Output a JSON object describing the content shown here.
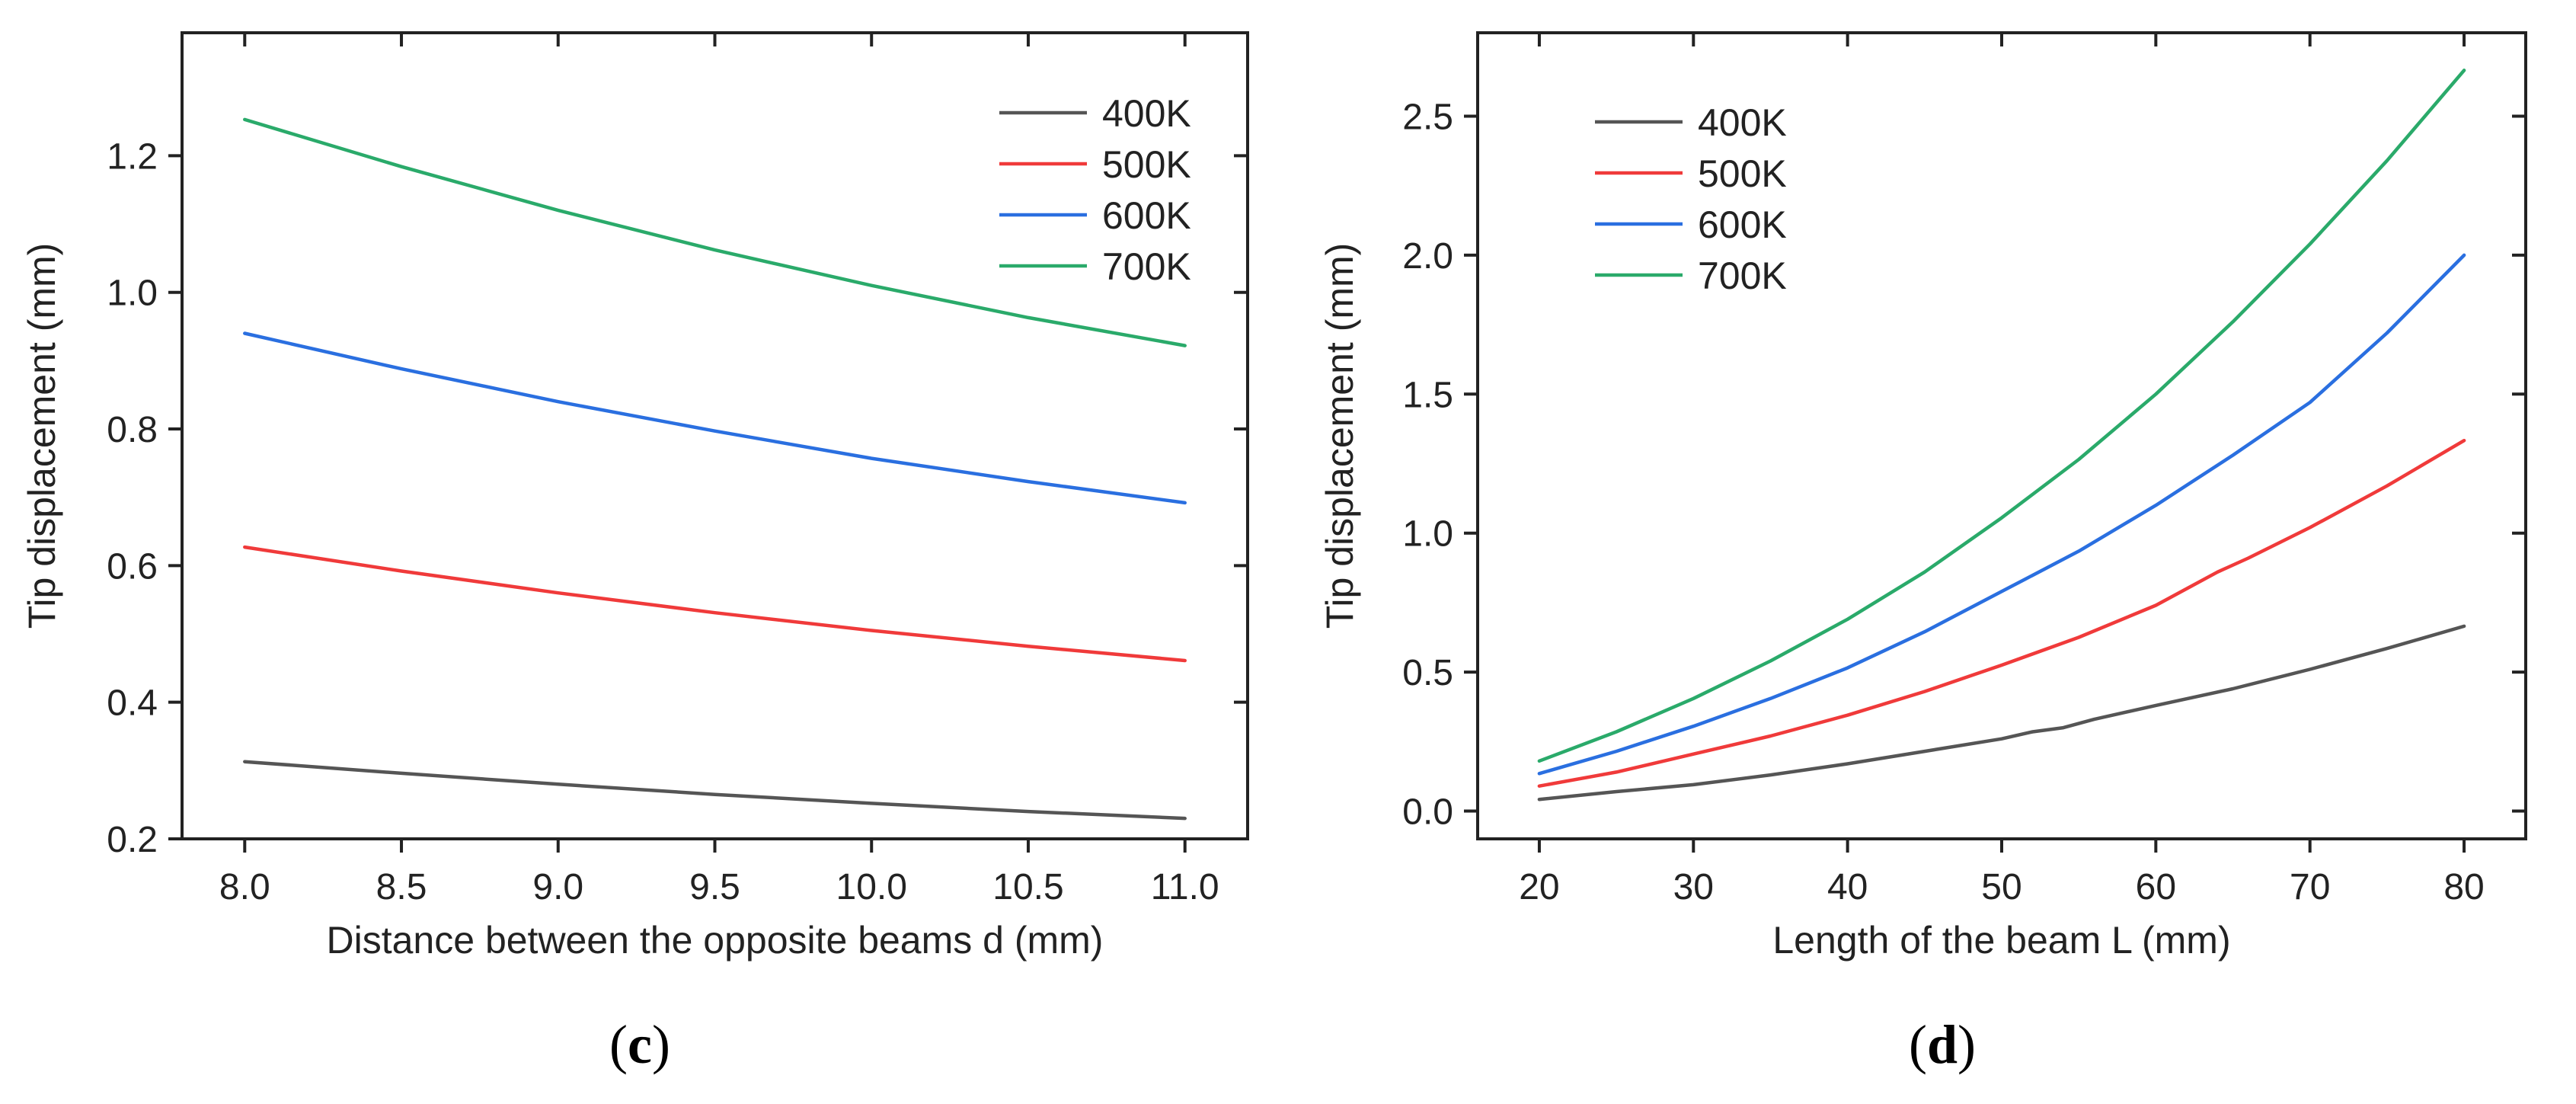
{
  "chart_data": [
    {
      "type": "line",
      "panel_label": "c",
      "xlabel": "Distance between the opposite beams d (mm)",
      "ylabel": "Tip displacement (mm)",
      "xlim": [
        7.8,
        11.2
      ],
      "ylim": [
        0.2,
        1.38
      ],
      "xticks": [
        8.0,
        8.5,
        9.0,
        9.5,
        10.0,
        10.5,
        11.0
      ],
      "xtick_labels": [
        "8.0",
        "8.5",
        "9.0",
        "9.5",
        "10.0",
        "10.5",
        "11.0"
      ],
      "yticks": [
        0.2,
        0.4,
        0.6,
        0.8,
        1.0,
        1.2
      ],
      "ytick_labels": [
        "0.2",
        "0.4",
        "0.6",
        "0.8",
        "1.0",
        "1.2"
      ],
      "legend_position": "top-right",
      "series": [
        {
          "name": "400K",
          "color": "#555555",
          "x": [
            8.0,
            8.5,
            9.0,
            9.5,
            10.0,
            10.5,
            11.0
          ],
          "values": [
            0.313,
            0.296,
            0.28,
            0.265,
            0.252,
            0.24,
            0.23
          ]
        },
        {
          "name": "500K",
          "color": "#f03a3a",
          "x": [
            8.0,
            8.5,
            9.0,
            9.5,
            10.0,
            10.5,
            11.0
          ],
          "values": [
            0.627,
            0.592,
            0.56,
            0.531,
            0.505,
            0.482,
            0.461
          ]
        },
        {
          "name": "600K",
          "color": "#2a6fe0",
          "x": [
            8.0,
            8.5,
            9.0,
            9.5,
            10.0,
            10.5,
            11.0
          ],
          "values": [
            0.94,
            0.888,
            0.84,
            0.797,
            0.757,
            0.723,
            0.692
          ]
        },
        {
          "name": "700K",
          "color": "#2aaa6a",
          "x": [
            8.0,
            8.5,
            9.0,
            9.5,
            10.0,
            10.5,
            11.0
          ],
          "values": [
            1.253,
            1.184,
            1.12,
            1.062,
            1.01,
            0.963,
            0.922
          ]
        }
      ]
    },
    {
      "type": "line",
      "panel_label": "d",
      "xlabel": "Length of the beam L (mm)",
      "ylabel": "Tip displacement (mm)",
      "xlim": [
        16,
        84
      ],
      "ylim": [
        -0.1,
        2.8
      ],
      "xticks": [
        20,
        30,
        40,
        50,
        60,
        70,
        80
      ],
      "xtick_labels": [
        "20",
        "30",
        "40",
        "50",
        "60",
        "70",
        "80"
      ],
      "yticks": [
        0.0,
        0.5,
        1.0,
        1.5,
        2.0,
        2.5
      ],
      "ytick_labels": [
        "0.0",
        "0.5",
        "1.0",
        "1.5",
        "2.0",
        "2.5"
      ],
      "legend_position": "top-left",
      "series": [
        {
          "name": "400K",
          "color": "#555555",
          "x": [
            20,
            25,
            30,
            35,
            40,
            45,
            50,
            52,
            54,
            56,
            60,
            65,
            70,
            75,
            80
          ],
          "values": [
            0.042,
            0.07,
            0.095,
            0.13,
            0.17,
            0.215,
            0.26,
            0.285,
            0.3,
            0.33,
            0.38,
            0.44,
            0.51,
            0.585,
            0.665
          ]
        },
        {
          "name": "500K",
          "color": "#f03a3a",
          "x": [
            20,
            25,
            30,
            35,
            40,
            45,
            50,
            55,
            60,
            64,
            66,
            70,
            75,
            80
          ],
          "values": [
            0.09,
            0.14,
            0.205,
            0.27,
            0.345,
            0.43,
            0.525,
            0.625,
            0.74,
            0.86,
            0.91,
            1.02,
            1.17,
            1.333
          ]
        },
        {
          "name": "600K",
          "color": "#2a6fe0",
          "x": [
            20,
            25,
            30,
            35,
            40,
            45,
            50,
            55,
            60,
            65,
            70,
            75,
            80
          ],
          "values": [
            0.135,
            0.215,
            0.305,
            0.405,
            0.515,
            0.645,
            0.79,
            0.935,
            1.1,
            1.28,
            1.47,
            1.72,
            2.0
          ]
        },
        {
          "name": "700K",
          "color": "#2aaa6a",
          "x": [
            20,
            25,
            30,
            35,
            40,
            45,
            50,
            55,
            60,
            65,
            70,
            75,
            80
          ],
          "values": [
            0.18,
            0.285,
            0.405,
            0.54,
            0.69,
            0.86,
            1.055,
            1.265,
            1.5,
            1.76,
            2.04,
            2.34,
            2.665
          ]
        }
      ]
    }
  ]
}
